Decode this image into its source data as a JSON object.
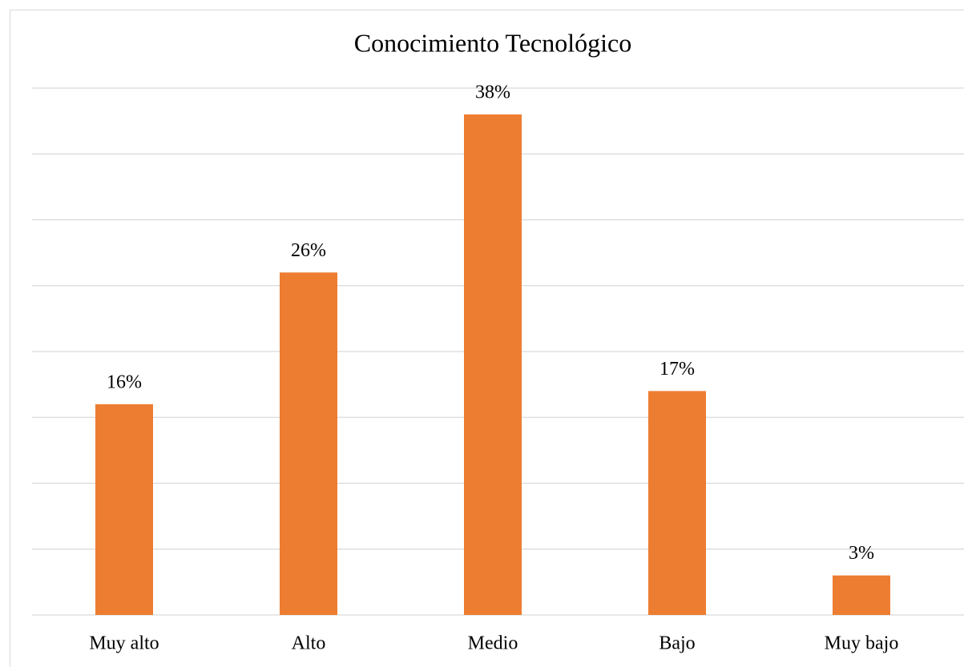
{
  "chart_data": {
    "type": "bar",
    "title": "Conocimiento Tecnológico",
    "categories": [
      "Muy alto",
      "Alto",
      "Medio",
      "Bajo",
      "Muy bajo"
    ],
    "values": [
      16,
      26,
      38,
      17,
      3
    ],
    "value_labels": [
      "16%",
      "26%",
      "38%",
      "17%",
      "3%"
    ],
    "color": "#ed7d31",
    "ylim": [
      0,
      40
    ],
    "yticks": [
      0,
      5,
      10,
      15,
      20,
      25,
      30,
      35,
      40
    ],
    "grid": true
  }
}
